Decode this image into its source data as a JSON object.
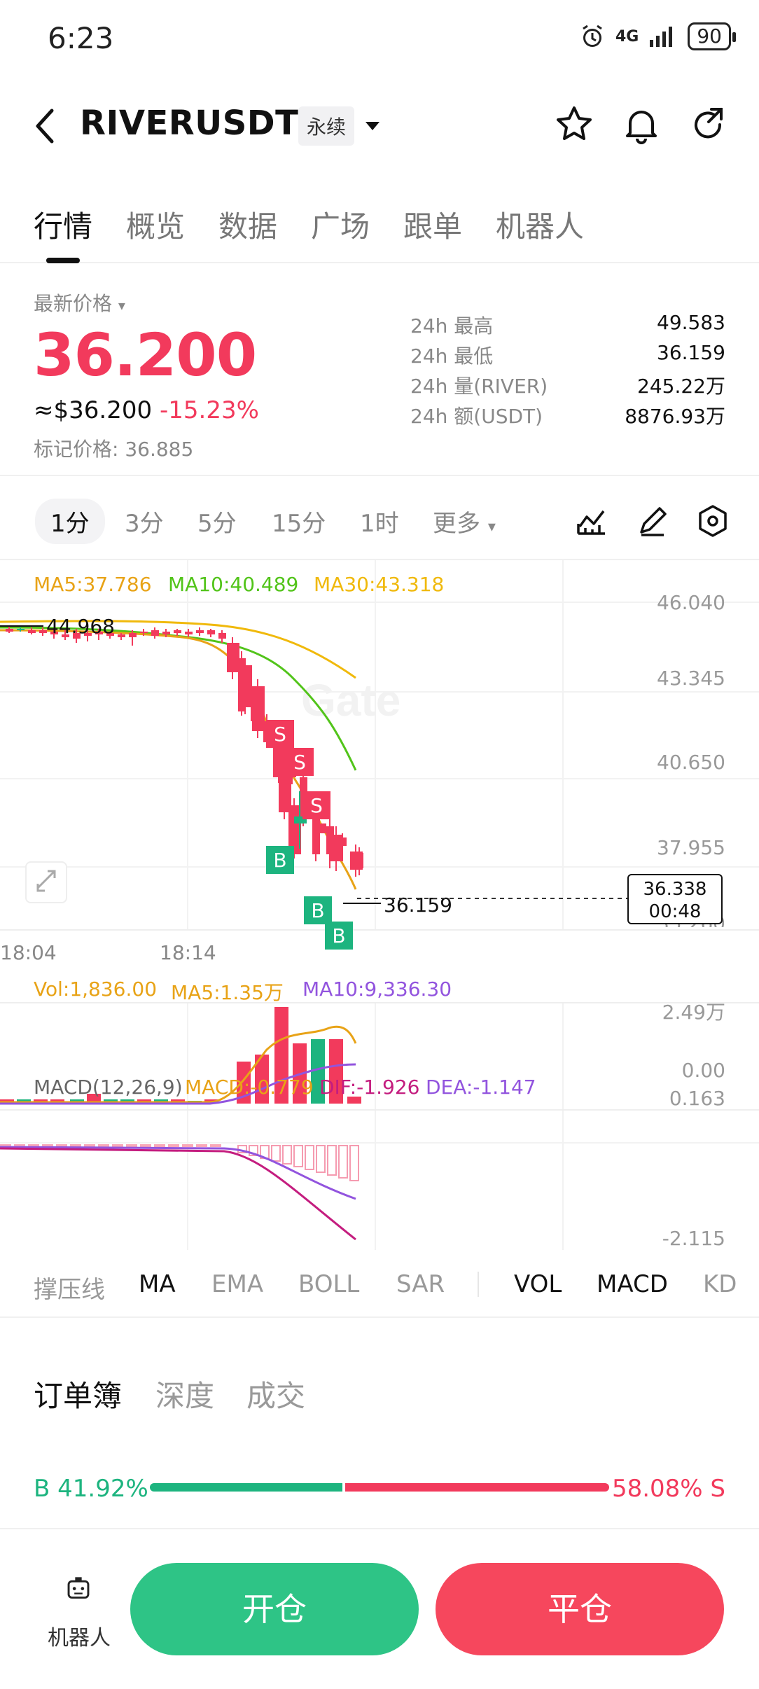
{
  "status_bar": {
    "time": "6:23",
    "network": "4G",
    "battery": "90"
  },
  "header": {
    "pair": "RIVERUSDT",
    "contract_type": "永续"
  },
  "tabs": [
    "行情",
    "概览",
    "数据",
    "广场",
    "跟单",
    "机器人"
  ],
  "price": {
    "latest_label": "最新价格",
    "last": "36.200",
    "usd": "≈$36.200",
    "change": "-15.23%",
    "mark": "标记价格: 36.885"
  },
  "stats": [
    {
      "label": "24h  最高",
      "value": "49.583"
    },
    {
      "label": "24h  最低",
      "value": "36.159"
    },
    {
      "label": "24h  量(RIVER)",
      "value": "245.22万"
    },
    {
      "label": "24h  额(USDT)",
      "value": "8876.93万"
    }
  ],
  "intervals": [
    "1分",
    "3分",
    "5分",
    "15分",
    "1时",
    "更多"
  ],
  "chart": {
    "ma5": "MA5:37.786",
    "ma10": "MA10:40.489",
    "ma30": "MA30:43.318",
    "price_axis": [
      "46.040",
      "43.345",
      "40.650",
      "37.955",
      "35.260"
    ],
    "high_marker": "44.968",
    "low_marker": "36.159",
    "current_tag": "36.338",
    "countdown": "00:48",
    "times": [
      "18:04",
      "18:14"
    ],
    "watermark": "Gate",
    "signals": [
      "S",
      "S",
      "S",
      "B",
      "B",
      "B"
    ]
  },
  "volume": {
    "vol": "Vol:1,836.00",
    "ma5": "MA5:1.35万",
    "ma10": "MA10:9,336.30",
    "axis_top": "2.49万",
    "axis_bottom": "0.00"
  },
  "macd": {
    "title": "MACD(12,26,9)",
    "macd": "MACD:-0.779",
    "dif": "DIF:-1.926",
    "dea": "DEA:-1.147",
    "axis_top": "0.163",
    "axis_bottom": "-2.115"
  },
  "indicators": [
    "撑压线",
    "MA",
    "EMA",
    "BOLL",
    "SAR",
    "VOL",
    "MACD",
    "KD"
  ],
  "orderbook_tabs": [
    "订单簿",
    "深度",
    "成交"
  ],
  "ratio": {
    "buy_label": "B 41.92%",
    "sell_label": "58.08% S",
    "buy": 0.4192
  },
  "bottom": {
    "robot_label": "机器人",
    "open": "开仓",
    "close": "平仓"
  },
  "colors": {
    "up": "#1db47f",
    "down": "#f23a5c",
    "ma5": "#e8a317",
    "ma10": "#52c41a",
    "ma30": "#f0b90b",
    "dif": "#c41d7f",
    "dea": "#9254de"
  }
}
